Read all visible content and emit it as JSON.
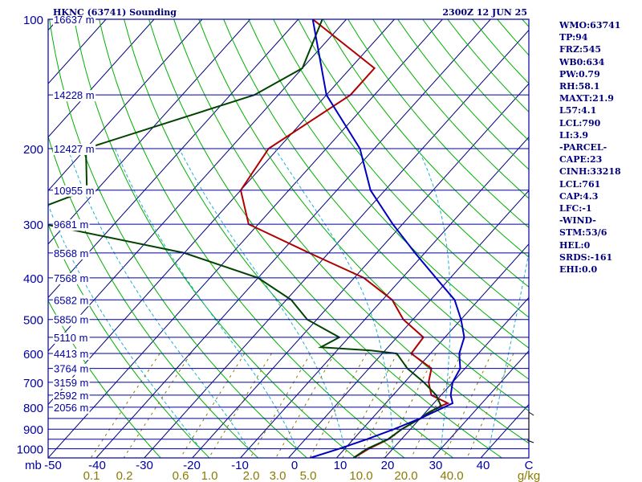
{
  "header": {
    "station": "HKNC (63741) Sounding",
    "datetime": "2300Z 12 JUN 25"
  },
  "indices": [
    "WMO:63741",
    "TP:94",
    "FRZ:545",
    "WB0:634",
    "PW:0.79",
    "RH:58.1",
    "MAXT:21.9",
    "L57:4.1",
    "LCL:790",
    "LI:3.9",
    "-PARCEL-",
    "CAPE:23",
    "CINH:33218",
    "LCL:761",
    "CAP:4.3",
    "LFC:-1",
    "-WIND-",
    "STM:53/6",
    "HEL:0",
    "SRDS:-161",
    "EHI:0.0"
  ],
  "colors": {
    "frame": "#0000a0",
    "isobar": "#0000a0",
    "isotherm": "#000080",
    "dry_adiabat": "#00b000",
    "moist_adiabat": "#20b0d0",
    "mixing_ratio": "#8b7b00",
    "temperature": "#b00000",
    "dewpoint": "#004400",
    "parcel": "#0000c0",
    "wind": "#000000"
  },
  "chart_data": {
    "type": "line",
    "title": "HKNC (63741) Sounding",
    "subtitle": "2300Z 12 JUN 25",
    "x_axis": {
      "unit_label": "mb",
      "temp_ticks": [
        "-50",
        "-40",
        "-30",
        "-20",
        "-10",
        "0",
        "10",
        "20",
        "30",
        "40",
        "C"
      ],
      "temp_values": [
        -50,
        -40,
        -30,
        -20,
        -10,
        0,
        10,
        20,
        30,
        40
      ],
      "mixing_ratio_ticks": [
        "0.1",
        "0.2",
        "0.6",
        "1.0",
        "2.0",
        "3.0",
        "5.0",
        "10.0",
        "20.0",
        "40.0",
        "g/kg"
      ],
      "mixing_ratio_values": [
        0.1,
        0.2,
        0.6,
        1.0,
        2.0,
        3.0,
        5.0,
        10.0,
        20.0,
        40.0
      ],
      "range_c": [
        -50,
        50
      ]
    },
    "y_axis": {
      "pressure_ticks": [
        "100",
        "200",
        "300",
        "400",
        "500",
        "600",
        "700",
        "800",
        "900",
        "1000"
      ],
      "pressure_values": [
        100,
        200,
        300,
        400,
        500,
        600,
        700,
        800,
        900,
        1000
      ],
      "range_mb": [
        1050,
        100
      ],
      "scale": "log"
    },
    "isobars_mb": [
      100,
      150,
      200,
      250,
      300,
      350,
      400,
      450,
      500,
      550,
      600,
      650,
      700,
      750,
      800,
      850,
      900,
      950,
      1000,
      1050
    ],
    "heights": [
      {
        "p": 100,
        "label": "16637 m"
      },
      {
        "p": 150,
        "label": "14228 m"
      },
      {
        "p": 200,
        "label": "12427 m"
      },
      {
        "p": 250,
        "label": "10955 m"
      },
      {
        "p": 300,
        "label": "9681 m"
      },
      {
        "p": 350,
        "label": "8568 m"
      },
      {
        "p": 400,
        "label": "7568 m"
      },
      {
        "p": 450,
        "label": "6582 m"
      },
      {
        "p": 500,
        "label": "5850 m"
      },
      {
        "p": 550,
        "label": "5110 m"
      },
      {
        "p": 600,
        "label": "4413 m"
      },
      {
        "p": 650,
        "label": "3764 m"
      },
      {
        "p": 700,
        "label": "3159 m"
      },
      {
        "p": 750,
        "label": "2592 m"
      },
      {
        "p": 800,
        "label": "2056 m"
      }
    ],
    "series": [
      {
        "key": "temperature",
        "values": [
          [
            783,
            22.9
          ],
          [
            795,
            22
          ],
          [
            810,
            21.3
          ],
          [
            835,
            20.6
          ],
          [
            850,
            20.2
          ],
          [
            860,
            19.6
          ],
          [
            900,
            18.2
          ],
          [
            950,
            17.3
          ],
          [
            1000,
            15
          ],
          [
            1050,
            13.6
          ]
        ]
      },
      {
        "key": "dewpoint",
        "values": [
          [
            790,
            21.7
          ],
          [
            800,
            22
          ],
          [
            815,
            21
          ],
          [
            830,
            20.4
          ],
          [
            845,
            20.3
          ],
          [
            860,
            19.7
          ],
          [
            900,
            18.2
          ],
          [
            950,
            17.2
          ],
          [
            1000,
            14.6
          ],
          [
            1050,
            13.5
          ]
        ]
      },
      {
        "key": "parcel",
        "values": [
          [
            783,
            23.9
          ],
          [
            800,
            22.9
          ],
          [
            850,
            20
          ],
          [
            900,
            16.6
          ],
          [
            950,
            12.8
          ],
          [
            1000,
            8.8
          ],
          [
            1050,
            4.5
          ]
        ]
      }
    ],
    "profiles_axis": "x = data column, y = pressure (mb)",
    "grid": true
  }
}
